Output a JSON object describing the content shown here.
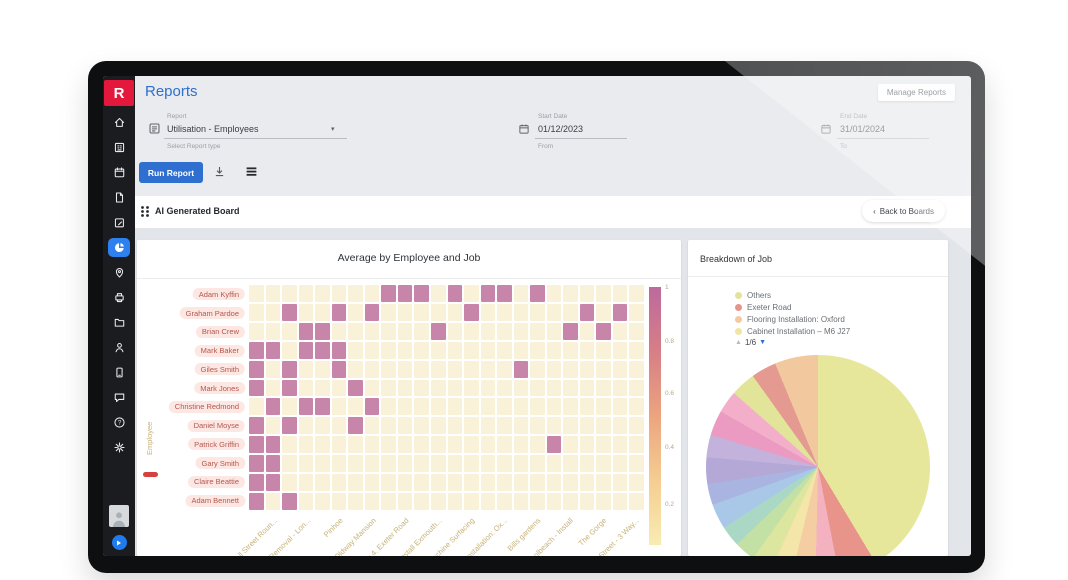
{
  "app": {
    "page_title": "Reports",
    "manage_reports_label": "Manage Reports"
  },
  "sidebar": {
    "logo_letter": "R",
    "items": [
      {
        "icon": "home-icon",
        "active": false
      },
      {
        "icon": "organization-icon",
        "active": false
      },
      {
        "icon": "calendar-icon",
        "active": false
      },
      {
        "icon": "document-icon",
        "active": false
      },
      {
        "icon": "edit-icon",
        "active": false
      },
      {
        "icon": "pie-chart-icon",
        "active": true
      },
      {
        "icon": "location-pin-icon",
        "active": false
      },
      {
        "icon": "printer-icon",
        "active": false
      },
      {
        "icon": "folder-icon",
        "active": false
      },
      {
        "icon": "person-icon",
        "active": false
      },
      {
        "icon": "mobile-icon",
        "active": false
      },
      {
        "icon": "chat-icon",
        "active": false
      },
      {
        "icon": "help-icon",
        "active": false
      },
      {
        "icon": "settings-icon",
        "active": false
      }
    ]
  },
  "filters": {
    "report": {
      "label": "Report",
      "value": "Utilisation - Employees",
      "helper": "Select Report type"
    },
    "start_date": {
      "label": "Start Date",
      "value": "01/12/2023",
      "helper": "From"
    },
    "end_date": {
      "label": "End Date",
      "value": "31/01/2024",
      "helper": "To"
    }
  },
  "toolbar": {
    "run_report_label": "Run Report"
  },
  "board": {
    "title": "AI Generated Board",
    "back_label": "Back to Boards",
    "back_chevron": "‹"
  },
  "colors": {
    "accent_blue": "#2e6fd0",
    "logo_red": "#e4183c",
    "heatmap_cell_empty": "#f9f2d9",
    "heatmap_cell_filled": "#c885aa",
    "pill_bg": "#fde7e3",
    "pill_text": "#b3574f"
  },
  "chart_data": [
    {
      "type": "heatmap",
      "title": "Average by Employee and Job",
      "ylabel": "Employee",
      "rows": [
        "Adam Kyffin",
        "Graham Pardoe",
        "Brian Crew",
        "Mark Baker",
        "Giles Smith",
        "Mark Jones",
        "Christine Redmond",
        "Daniel Moyse",
        "Patrick Griffin",
        "Gary Smith",
        "Claire Beattie",
        "Adam Bennett"
      ],
      "n_cols": 24,
      "highlighted_cols_per_row": [
        [
          9,
          10,
          11,
          13,
          15,
          16,
          18
        ],
        [
          3,
          6,
          8,
          14,
          21,
          23
        ],
        [
          4,
          5,
          12,
          20,
          22
        ],
        [
          1,
          2,
          4,
          5,
          6
        ],
        [
          1,
          3,
          6,
          17
        ],
        [
          1,
          3,
          7
        ],
        [
          2,
          4,
          5,
          8
        ],
        [
          1,
          3,
          7
        ],
        [
          1,
          2,
          19
        ],
        [
          1,
          2
        ],
        [
          1,
          2
        ],
        [
          1,
          3
        ]
      ],
      "x_labels": [
        "ll Street Roun...",
        "Removal - Lon...",
        "Pinhoe",
        "Oldway Mansion",
        "g 4. Exeter Road",
        "nstall Exmouth...",
        "achine Surfacing",
        "nstallation: Ox...",
        "Bills gardens",
        "olbeach - Install",
        "The Gorge",
        "Street - 3 Way..."
      ],
      "colorbar_ticks": [
        "1",
        "0.8",
        "0.6",
        "0.4",
        "0.2"
      ],
      "value_range": [
        0.2,
        1
      ]
    },
    {
      "type": "pie",
      "title": "Breakdown of Job",
      "legend": [
        {
          "label": "Others",
          "color": "#e4e29a"
        },
        {
          "label": "Exeter Road",
          "color": "#e8948a"
        },
        {
          "label": "Flooring Installation: Oxford",
          "color": "#f3c9a1"
        },
        {
          "label": "Cabinet Installation – M6 J27",
          "color": "#efe6a5"
        }
      ],
      "pagination": "1/6",
      "slices": [
        {
          "label": "Others",
          "color": "#e6e79b",
          "value": 41
        },
        {
          "label": "Exeter Road",
          "color": "#e8948a",
          "value": 5.5
        },
        {
          "color": "#f4b2c0",
          "value": 3.4
        },
        {
          "color": "#f5cda2",
          "value": 3.4
        },
        {
          "color": "#f4e6a9",
          "value": 3.0
        },
        {
          "color": "#dde69e",
          "value": 3.0
        },
        {
          "color": "#c3e0a5",
          "value": 3.0
        },
        {
          "color": "#aad8c5",
          "value": 3.0
        },
        {
          "color": "#a9c8e8",
          "value": 3.6
        },
        {
          "color": "#aab4e0",
          "value": 3.0
        },
        {
          "color": "#b3a8d6",
          "value": 3.8
        },
        {
          "color": "#c2b2dc",
          "value": 3.2
        },
        {
          "color": "#eb9bc2",
          "value": 3.6
        },
        {
          "color": "#f3aec9",
          "value": 3.2
        },
        {
          "color": "#e2e49a",
          "value": 3.6
        },
        {
          "color": "#e49a90",
          "value": 3.6
        },
        {
          "color": "#f2c89e",
          "value": 6.2
        }
      ]
    }
  ]
}
